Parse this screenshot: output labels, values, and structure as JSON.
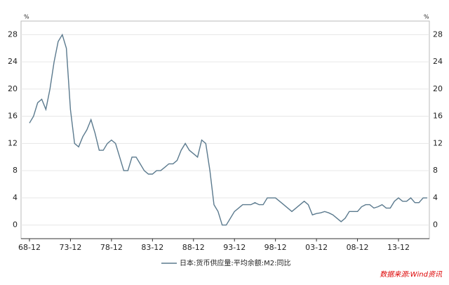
{
  "chart_data": {
    "type": "line",
    "y_unit": "%",
    "x": [
      "68-12",
      "69-06",
      "69-12",
      "70-06",
      "70-12",
      "71-06",
      "71-12",
      "72-06",
      "72-12",
      "73-06",
      "73-12",
      "74-06",
      "74-12",
      "75-06",
      "75-12",
      "76-06",
      "76-12",
      "77-06",
      "77-12",
      "78-06",
      "78-12",
      "79-06",
      "79-12",
      "80-06",
      "80-12",
      "81-06",
      "81-12",
      "82-06",
      "82-12",
      "83-06",
      "83-12",
      "84-06",
      "84-12",
      "85-06",
      "85-12",
      "86-06",
      "86-12",
      "87-06",
      "87-12",
      "88-06",
      "88-12",
      "89-06",
      "89-12",
      "90-06",
      "90-12",
      "91-06",
      "91-12",
      "92-06",
      "92-12",
      "93-06",
      "93-12",
      "94-06",
      "94-12",
      "95-06",
      "95-12",
      "96-06",
      "96-12",
      "97-06",
      "97-12",
      "98-06",
      "98-12",
      "99-06",
      "99-12",
      "00-06",
      "00-12",
      "01-06",
      "01-12",
      "02-06",
      "02-12",
      "03-06",
      "03-12",
      "04-06",
      "04-12",
      "05-06",
      "05-12",
      "06-06",
      "06-12",
      "07-06",
      "07-12",
      "08-06",
      "08-12",
      "09-06",
      "09-12",
      "10-06",
      "10-12",
      "11-06",
      "11-12",
      "12-06",
      "12-12",
      "13-06",
      "13-12",
      "14-06",
      "14-12",
      "15-06",
      "15-12",
      "16-06",
      "16-12",
      "17-06"
    ],
    "series": [
      {
        "name": "日本:货币供应量:平均余额:M2:同比",
        "color": "#5b7a8e",
        "values": [
          15,
          16,
          18,
          18.5,
          17,
          20,
          24,
          27,
          28,
          26,
          17,
          12,
          11.5,
          13,
          14,
          15.5,
          13.5,
          11,
          11,
          12,
          12.5,
          12,
          10,
          8,
          8,
          10,
          10,
          9,
          8,
          7.5,
          7.5,
          8,
          8,
          8.5,
          9,
          9,
          9.5,
          11,
          12,
          11,
          10.5,
          10,
          12.5,
          12,
          8,
          3,
          2,
          0,
          0,
          1,
          2,
          2.5,
          3,
          3,
          3,
          3.3,
          3,
          3,
          4,
          4,
          4,
          3.5,
          3,
          2.5,
          2,
          2.5,
          3,
          3.5,
          3,
          1.5,
          1.7,
          1.8,
          2,
          1.8,
          1.5,
          1,
          0.5,
          1,
          2,
          2,
          2,
          2.7,
          3,
          3,
          2.5,
          2.7,
          3,
          2.5,
          2.5,
          3.5,
          4,
          3.5,
          3.5,
          4,
          3.3,
          3.3,
          4,
          4
        ]
      }
    ],
    "xticks": [
      "68-12",
      "73-12",
      "78-12",
      "83-12",
      "88-12",
      "93-12",
      "98-12",
      "03-12",
      "08-12",
      "13-12"
    ],
    "ylim": [
      -2,
      30
    ],
    "yticks": [
      0,
      4,
      8,
      12,
      16,
      20,
      24,
      28
    ],
    "grid": true,
    "source": "数据来源:Wind资讯"
  }
}
